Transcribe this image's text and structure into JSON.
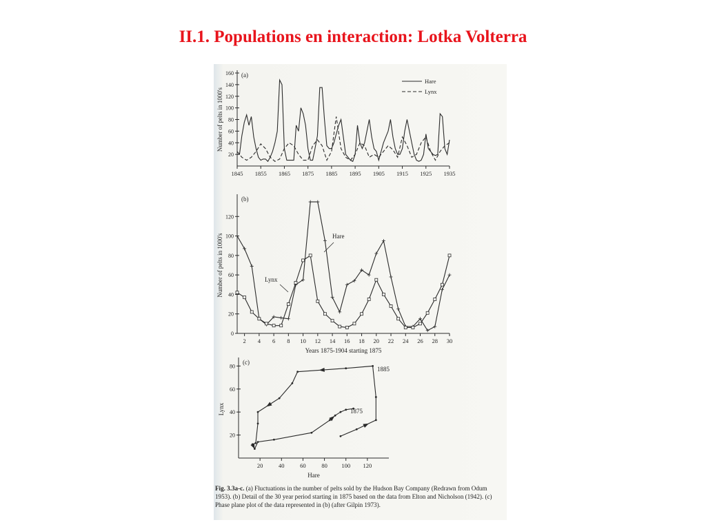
{
  "page": {
    "title": "II.1. Populations en interaction: Lotka Volterra"
  },
  "figure": {
    "caption_label": "Fig. 3.3a-c.",
    "caption_text": "(a) Fluctuations in the number of pelts sold by the Hudson Bay Company (Redrawn from Odum 1953). (b) Detail of the 30 year period starting in 1875 based on the data from Elton and Nicholson (1942). (c) Phase plane plot of the data represented in (b) (after Gilpin 1973)."
  },
  "chart_data": [
    {
      "type": "line",
      "panel_label": "(a)",
      "ylabel": "Number of pelts in 1000's",
      "xlim": [
        1845,
        1935
      ],
      "ylim": [
        0,
        160
      ],
      "xticks": [
        1845,
        1855,
        1865,
        1875,
        1885,
        1895,
        1905,
        1915,
        1925,
        1935
      ],
      "yticks": [
        20,
        40,
        60,
        80,
        100,
        120,
        140,
        160
      ],
      "legend_position": "top-right",
      "series": [
        {
          "name": "Hare",
          "style": "solid",
          "x": [
            1845,
            1846,
            1847,
            1848,
            1849,
            1850,
            1851,
            1852,
            1853,
            1854,
            1855,
            1856,
            1857,
            1858,
            1859,
            1860,
            1861,
            1862,
            1863,
            1864,
            1865,
            1866,
            1867,
            1868,
            1869,
            1870,
            1871,
            1872,
            1873,
            1874,
            1875,
            1876,
            1877,
            1878,
            1879,
            1880,
            1881,
            1882,
            1883,
            1884,
            1885,
            1886,
            1887,
            1888,
            1889,
            1890,
            1891,
            1892,
            1893,
            1894,
            1895,
            1896,
            1897,
            1898,
            1899,
            1900,
            1901,
            1902,
            1903,
            1904,
            1905,
            1906,
            1907,
            1908,
            1909,
            1910,
            1911,
            1912,
            1913,
            1914,
            1915,
            1916,
            1917,
            1918,
            1919,
            1920,
            1921,
            1922,
            1923,
            1924,
            1925,
            1926,
            1927,
            1928,
            1929,
            1930,
            1931,
            1932,
            1933,
            1934,
            1935
          ],
          "y": [
            20,
            20,
            52,
            75,
            88,
            70,
            85,
            50,
            30,
            15,
            10,
            12,
            12,
            8,
            15,
            25,
            40,
            60,
            148,
            140,
            30,
            10,
            10,
            10,
            10,
            70,
            60,
            100,
            90,
            70,
            30,
            10,
            10,
            30,
            52,
            135,
            135,
            80,
            35,
            30,
            30,
            40,
            55,
            70,
            80,
            50,
            20,
            15,
            10,
            8,
            20,
            70,
            40,
            30,
            40,
            60,
            80,
            50,
            30,
            25,
            10,
            25,
            40,
            50,
            60,
            80,
            50,
            30,
            20,
            20,
            30,
            60,
            80,
            60,
            40,
            20,
            10,
            8,
            10,
            20,
            55,
            30,
            25,
            20,
            18,
            20,
            90,
            85,
            30,
            20,
            45
          ]
        },
        {
          "name": "Lynx",
          "style": "dashed",
          "x": [
            1845,
            1847,
            1849,
            1851,
            1853,
            1855,
            1857,
            1859,
            1861,
            1863,
            1865,
            1867,
            1869,
            1871,
            1873,
            1875,
            1877,
            1879,
            1881,
            1883,
            1885,
            1887,
            1889,
            1891,
            1893,
            1895,
            1897,
            1899,
            1901,
            1903,
            1905,
            1907,
            1909,
            1911,
            1913,
            1915,
            1917,
            1919,
            1921,
            1923,
            1925,
            1927,
            1929,
            1931,
            1933,
            1935
          ],
          "y": [
            25,
            15,
            10,
            15,
            25,
            38,
            30,
            15,
            8,
            12,
            30,
            40,
            35,
            20,
            10,
            10,
            35,
            45,
            35,
            10,
            25,
            85,
            30,
            15,
            10,
            20,
            40,
            35,
            15,
            20,
            15,
            25,
            35,
            28,
            15,
            50,
            35,
            15,
            20,
            40,
            50,
            25,
            10,
            25,
            35,
            40
          ]
        }
      ]
    },
    {
      "type": "line",
      "panel_label": "(b)",
      "xlabel": "Years 1875-1904 starting 1875",
      "ylabel": "Number of pelts in 1000's",
      "xlim": [
        1,
        30
      ],
      "ylim": [
        0,
        140
      ],
      "xticks": [
        2,
        4,
        6,
        8,
        10,
        12,
        14,
        16,
        18,
        20,
        22,
        24,
        26,
        28,
        30
      ],
      "yticks": [
        0,
        20,
        40,
        60,
        80,
        100,
        120
      ],
      "series": [
        {
          "name": "Hare",
          "marker": "plus",
          "x": [
            1,
            2,
            3,
            4,
            5,
            6,
            7,
            8,
            9,
            10,
            11,
            12,
            13,
            14,
            15,
            16,
            17,
            18,
            19,
            20,
            21,
            22,
            23,
            24,
            25,
            26,
            27,
            28,
            29,
            30
          ],
          "y": [
            100,
            87,
            69,
            15,
            9,
            17,
            16,
            15,
            50,
            55,
            135,
            135,
            95,
            37,
            22,
            50,
            54,
            65,
            60,
            82,
            95,
            58,
            25,
            7,
            7,
            15,
            3,
            7,
            45,
            60
          ]
        },
        {
          "name": "Lynx",
          "marker": "square",
          "x": [
            1,
            2,
            3,
            4,
            5,
            6,
            7,
            8,
            9,
            10,
            11,
            12,
            13,
            14,
            15,
            16,
            17,
            18,
            19,
            20,
            21,
            22,
            23,
            24,
            25,
            26,
            27,
            28,
            29,
            30
          ],
          "y": [
            42,
            37,
            22,
            15,
            10,
            8,
            8,
            30,
            52,
            75,
            80,
            33,
            20,
            13,
            7,
            6,
            10,
            20,
            35,
            55,
            40,
            28,
            15,
            6,
            6,
            10,
            21,
            35,
            50,
            80
          ]
        }
      ]
    },
    {
      "type": "line",
      "panel_label": "(c)",
      "xlabel": "Hare",
      "ylabel": "Lynx",
      "xlim": [
        0,
        140
      ],
      "ylim": [
        0,
        85
      ],
      "xticks": [
        20,
        40,
        60,
        80,
        100,
        120
      ],
      "yticks": [
        20,
        40,
        60,
        80
      ],
      "annotations": [
        "1885",
        "1875"
      ],
      "series": [
        {
          "name": "",
          "x": [
            95,
            110,
            128,
            128,
            125,
            100,
            55,
            50,
            38,
            18,
            18,
            16,
            13,
            15,
            18,
            33,
            68,
            85,
            90,
            95,
            100,
            107
          ],
          "y": [
            19,
            25,
            33,
            53,
            80,
            78,
            75,
            65,
            52,
            40,
            30,
            13,
            12,
            8,
            14,
            16,
            22,
            33,
            37,
            40,
            42,
            43
          ]
        }
      ]
    }
  ]
}
